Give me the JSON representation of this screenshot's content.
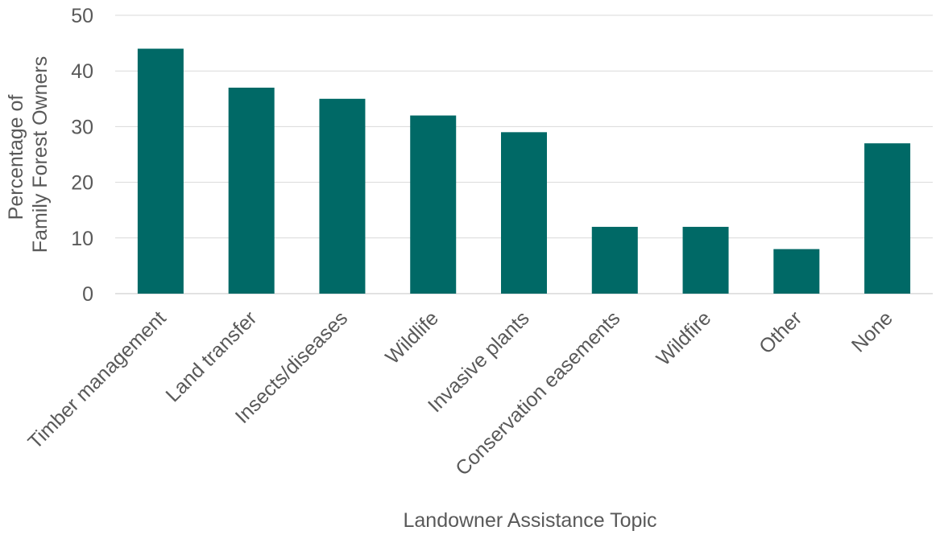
{
  "chart_data": {
    "type": "bar",
    "title": "",
    "xlabel": "Landowner Assistance Topic",
    "ylabel_line1": "Percentage of",
    "ylabel_line2": "Family Forest Owners",
    "ylim": [
      0,
      50
    ],
    "yticks": [
      0,
      10,
      20,
      30,
      40,
      50
    ],
    "grid": true,
    "legend": "none",
    "bar_color": "#006966",
    "grid_color": "#d9d9d9",
    "categories": [
      "Timber management",
      "Land transfer",
      "Insects/diseases",
      "Wildlife",
      "Invasive plants",
      "Conservation easements",
      "Wildfire",
      "Other",
      "None"
    ],
    "values": [
      44,
      37,
      35,
      32,
      29,
      12,
      12,
      8,
      27
    ]
  }
}
